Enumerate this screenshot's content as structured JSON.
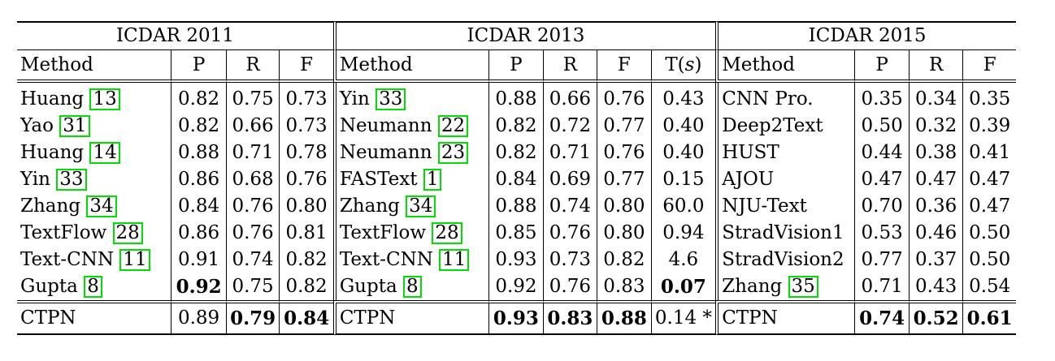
{
  "groups": [
    {
      "title": "ICDAR 2011",
      "headers": [
        "Method",
        "P",
        "R",
        "F"
      ]
    },
    {
      "title": "ICDAR 2013",
      "headers": [
        "Method",
        "P",
        "R",
        "F",
        "T(",
        "s",
        ")"
      ]
    },
    {
      "title": "ICDAR 2015",
      "headers": [
        "Method",
        "P",
        "R",
        "F"
      ]
    }
  ],
  "rows": [
    {
      "g1": {
        "name": "Huang ",
        "ref": "13",
        "p": "0.82",
        "r": "0.75",
        "f": "0.73"
      },
      "g2": {
        "name": "Yin ",
        "ref": "33",
        "p": "0.88",
        "r": "0.66",
        "f": "0.76",
        "t": "0.43"
      },
      "g3": {
        "name": "CNN Pro.",
        "p": "0.35",
        "r": "0.34",
        "f": "0.35"
      }
    },
    {
      "g1": {
        "name": "Yao ",
        "ref": "31",
        "p": "0.82",
        "r": "0.66",
        "f": "0.73"
      },
      "g2": {
        "name": "Neumann ",
        "ref": "22",
        "p": "0.82",
        "r": "0.72",
        "f": "0.77",
        "t": "0.40"
      },
      "g3": {
        "name": "Deep2Text",
        "p": "0.50",
        "r": "0.32",
        "f": "0.39"
      }
    },
    {
      "g1": {
        "name": "Huang ",
        "ref": "14",
        "p": "0.88",
        "r": "0.71",
        "f": "0.78"
      },
      "g2": {
        "name": "Neumann ",
        "ref": "23",
        "p": "0.82",
        "r": "0.71",
        "f": "0.76",
        "t": "0.40"
      },
      "g3": {
        "name": "HUST",
        "p": "0.44",
        "r": "0.38",
        "f": "0.41"
      }
    },
    {
      "g1": {
        "name": "Yin ",
        "ref": "33",
        "p": "0.86",
        "r": "0.68",
        "f": "0.76"
      },
      "g2": {
        "name": "FASText ",
        "ref": "1",
        "p": "0.84",
        "r": "0.69",
        "f": "0.77",
        "t": "0.15"
      },
      "g3": {
        "name": "AJOU",
        "p": "0.47",
        "r": "0.47",
        "f": "0.47"
      }
    },
    {
      "g1": {
        "name": "Zhang ",
        "ref": "34",
        "p": "0.84",
        "r": "0.76",
        "f": "0.80"
      },
      "g2": {
        "name": "Zhang ",
        "ref": "34",
        "p": "0.88",
        "r": "0.74",
        "f": "0.80",
        "t": "60.0"
      },
      "g3": {
        "name": "NJU-Text",
        "p": "0.70",
        "r": "0.36",
        "f": "0.47"
      }
    },
    {
      "g1": {
        "name": "TextFlow ",
        "ref": "28",
        "p": "0.86",
        "r": "0.76",
        "f": "0.81"
      },
      "g2": {
        "name": "TextFlow ",
        "ref": "28",
        "p": "0.85",
        "r": "0.76",
        "f": "0.80",
        "t": "0.94"
      },
      "g3": {
        "name": "StradVision1",
        "p": "0.53",
        "r": "0.46",
        "f": "0.50"
      }
    },
    {
      "g1": {
        "name": "Text-CNN ",
        "ref": "11",
        "p": "0.91",
        "r": "0.74",
        "f": "0.82"
      },
      "g2": {
        "name": "Text-CNN ",
        "ref": "11",
        "p": "0.93",
        "r": "0.73",
        "f": "0.82",
        "t": "4.6"
      },
      "g3": {
        "name": "StradVision2",
        "p": "0.77",
        "r": "0.37",
        "f": "0.50"
      }
    },
    {
      "g1": {
        "name": "Gupta ",
        "ref": "8",
        "p": "0.92",
        "r": "0.75",
        "f": "0.82"
      },
      "g2": {
        "name": "Gupta ",
        "ref": "8",
        "p": "0.92",
        "r": "0.76",
        "f": "0.83",
        "t": "0.07"
      },
      "g3": {
        "name": "Zhang ",
        "ref": "35",
        "p": "0.71",
        "r": "0.43",
        "f": "0.54"
      }
    }
  ],
  "ctpn": {
    "g1": {
      "name": "CTPN",
      "p": "0.89",
      "r": "0.79",
      "f": "0.84"
    },
    "g2": {
      "name": "CTPN",
      "p": "0.93",
      "r": "0.83",
      "f": "0.88",
      "t": "0.14 *"
    },
    "g3": {
      "name": "CTPN",
      "p": "0.74",
      "r": "0.52",
      "f": "0.61"
    }
  },
  "bold": [
    "r7.g1.p",
    "r7.g2.t",
    "ctpn.g1.r",
    "ctpn.g1.f",
    "ctpn.g2.p",
    "ctpn.g2.r",
    "ctpn.g2.f",
    "ctpn.g3.p",
    "ctpn.g3.r",
    "ctpn.g3.f"
  ],
  "ref_box_color": "#00e000"
}
